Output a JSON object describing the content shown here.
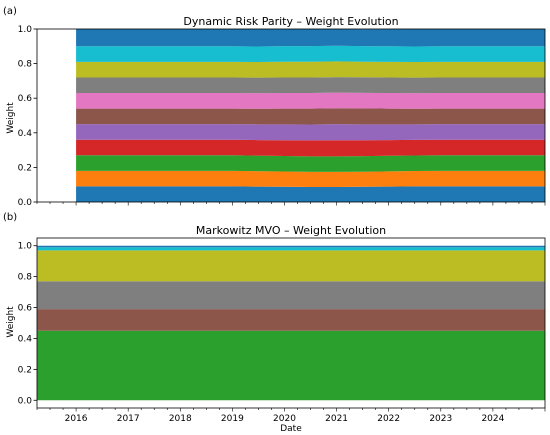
{
  "panels": [
    {
      "letter": "(a)",
      "title": "Dynamic Risk Parity – Weight Evolution",
      "ylabel": "Weight"
    },
    {
      "letter": "(b)",
      "title": "Markowitz MVO – Weight Evolution",
      "ylabel": "Weight"
    }
  ],
  "xlabel": "Date",
  "chart_data": [
    {
      "type": "area",
      "stacked": true,
      "title": "Dynamic Risk Parity – Weight Evolution",
      "xlabel": "",
      "ylabel": "Weight",
      "xlim": [
        2015.25,
        2025.0
      ],
      "ylim": [
        0,
        1.0
      ],
      "xticks": [],
      "yticks": [
        "0.0",
        "0.2",
        "0.4",
        "0.6",
        "0.8",
        "1.0"
      ],
      "grid": false,
      "x": [
        2016.0,
        2016.5,
        2017.0,
        2017.5,
        2018.0,
        2018.5,
        2019.0,
        2019.5,
        2020.0,
        2020.5,
        2021.0,
        2021.5,
        2022.0,
        2022.5,
        2023.0,
        2023.5,
        2024.0,
        2024.5,
        2025.0
      ],
      "series": [
        {
          "color": "#1f77b4",
          "values": [
            0.09,
            0.09,
            0.09,
            0.09,
            0.09,
            0.09,
            0.09,
            0.089,
            0.088,
            0.087,
            0.087,
            0.088,
            0.089,
            0.09,
            0.09,
            0.09,
            0.09,
            0.09,
            0.09
          ]
        },
        {
          "color": "#ff7f0e",
          "values": [
            0.09,
            0.09,
            0.09,
            0.09,
            0.09,
            0.09,
            0.09,
            0.089,
            0.088,
            0.087,
            0.087,
            0.087,
            0.088,
            0.089,
            0.09,
            0.09,
            0.09,
            0.09,
            0.09
          ]
        },
        {
          "color": "#2ca02c",
          "values": [
            0.09,
            0.09,
            0.09,
            0.09,
            0.09,
            0.09,
            0.09,
            0.09,
            0.09,
            0.09,
            0.09,
            0.09,
            0.09,
            0.09,
            0.09,
            0.09,
            0.09,
            0.09,
            0.09
          ]
        },
        {
          "color": "#d62728",
          "values": [
            0.09,
            0.09,
            0.09,
            0.09,
            0.09,
            0.09,
            0.09,
            0.09,
            0.091,
            0.092,
            0.093,
            0.092,
            0.091,
            0.09,
            0.09,
            0.09,
            0.09,
            0.09,
            0.09
          ]
        },
        {
          "color": "#9467bd",
          "values": [
            0.09,
            0.09,
            0.09,
            0.09,
            0.09,
            0.09,
            0.09,
            0.091,
            0.092,
            0.092,
            0.093,
            0.092,
            0.091,
            0.09,
            0.09,
            0.09,
            0.09,
            0.09,
            0.09
          ]
        },
        {
          "color": "#8c564b",
          "values": [
            0.09,
            0.09,
            0.09,
            0.09,
            0.09,
            0.09,
            0.09,
            0.09,
            0.091,
            0.092,
            0.092,
            0.092,
            0.091,
            0.09,
            0.09,
            0.09,
            0.09,
            0.09,
            0.09
          ]
        },
        {
          "color": "#e377c2",
          "values": [
            0.09,
            0.09,
            0.09,
            0.09,
            0.09,
            0.09,
            0.09,
            0.09,
            0.09,
            0.09,
            0.09,
            0.09,
            0.09,
            0.09,
            0.09,
            0.09,
            0.09,
            0.09,
            0.09
          ]
        },
        {
          "color": "#7f7f7f",
          "values": [
            0.09,
            0.09,
            0.09,
            0.09,
            0.09,
            0.09,
            0.09,
            0.09,
            0.09,
            0.09,
            0.09,
            0.09,
            0.09,
            0.09,
            0.09,
            0.09,
            0.09,
            0.09,
            0.09
          ]
        },
        {
          "color": "#bcbd22",
          "values": [
            0.09,
            0.09,
            0.09,
            0.09,
            0.09,
            0.09,
            0.09,
            0.09,
            0.091,
            0.091,
            0.091,
            0.09,
            0.09,
            0.09,
            0.09,
            0.09,
            0.09,
            0.09,
            0.09
          ]
        },
        {
          "color": "#17becf",
          "values": [
            0.09,
            0.09,
            0.09,
            0.09,
            0.09,
            0.09,
            0.09,
            0.09,
            0.09,
            0.09,
            0.09,
            0.09,
            0.09,
            0.09,
            0.09,
            0.09,
            0.09,
            0.09,
            0.09
          ]
        },
        {
          "color": "#1f77b4",
          "values": [
            0.1,
            0.1,
            0.1,
            0.1,
            0.1,
            0.1,
            0.1,
            0.101,
            0.099,
            0.099,
            0.098,
            0.097,
            0.099,
            0.101,
            0.1,
            0.1,
            0.1,
            0.1,
            0.1
          ]
        }
      ]
    },
    {
      "type": "area",
      "stacked": true,
      "title": "Markowitz MVO – Weight Evolution",
      "xlabel": "Date",
      "ylabel": "Weight",
      "xlim": [
        2015.25,
        2025.0
      ],
      "ylim": [
        -0.05,
        1.05
      ],
      "xticks": [
        "2016",
        "2017",
        "2018",
        "2019",
        "2020",
        "2021",
        "2022",
        "2023",
        "2024"
      ],
      "yticks": [
        "0.0",
        "0.2",
        "0.4",
        "0.6",
        "0.8",
        "1.0"
      ],
      "grid": false,
      "x": [
        2015.25,
        2025.0
      ],
      "series": [
        {
          "color": "#2ca02c",
          "values": [
            0.45,
            0.45
          ]
        },
        {
          "color": "#8c564b",
          "values": [
            0.14,
            0.14
          ]
        },
        {
          "color": "#7f7f7f",
          "values": [
            0.18,
            0.18
          ]
        },
        {
          "color": "#bcbd22",
          "values": [
            0.2,
            0.2
          ]
        },
        {
          "color": "#17becf",
          "values": [
            0.02,
            0.02
          ]
        },
        {
          "color": "#1f77b4",
          "values": [
            0.01,
            0.01
          ]
        }
      ]
    }
  ]
}
